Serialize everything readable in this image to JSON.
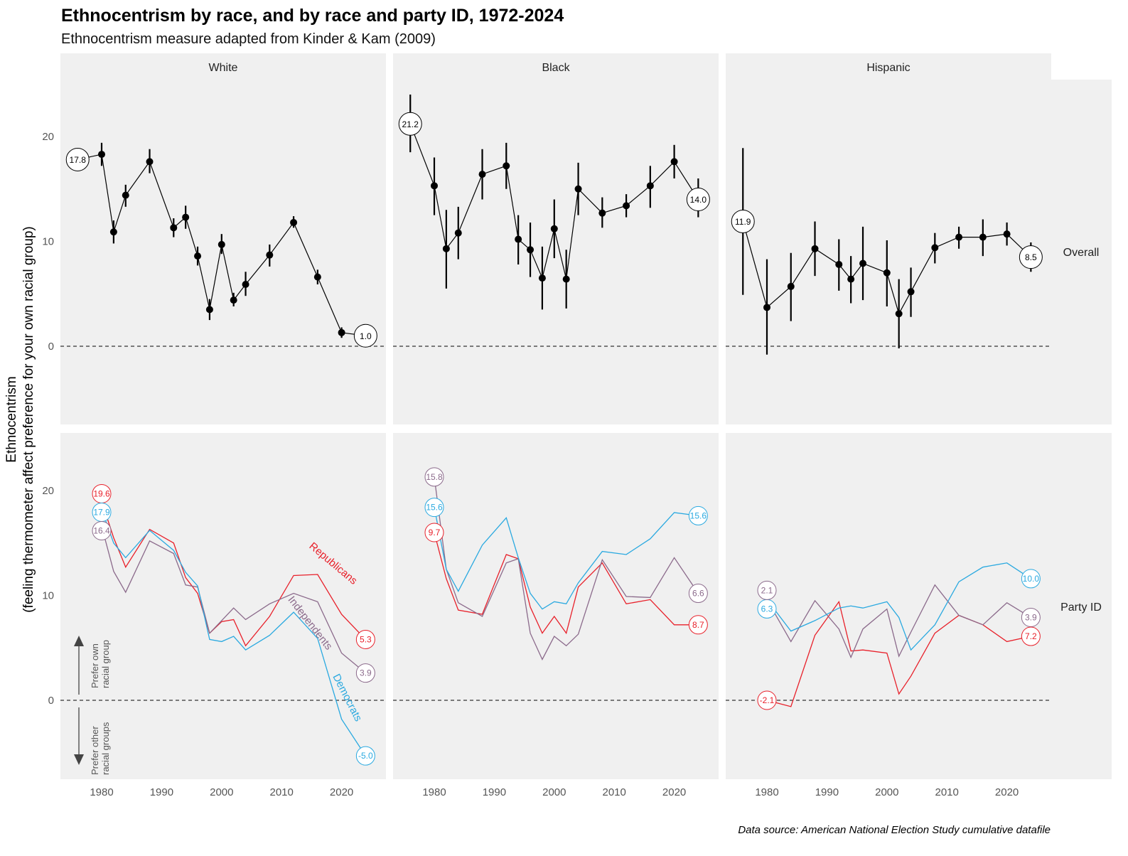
{
  "chart_data": {
    "type": "line",
    "title": "Ethnocentrism by race, and by race and party ID, 1972-2024",
    "subtitle": "Ethnocentrism measure adapted from Kinder & Kam (2009)",
    "ylabel": [
      "Ethnocentrism",
      "(feeling thermometer affect preference for your own racial group)"
    ],
    "caption": "Data source: American National Election Study cumulative datafile",
    "columns": [
      "White",
      "Black",
      "Hispanic"
    ],
    "rows": [
      "Overall",
      "Party ID"
    ],
    "x_ticks": [
      1980,
      1990,
      2000,
      2010,
      2020
    ],
    "y_ticks": [
      0,
      10,
      20
    ],
    "ylim_overall": [
      -7.5,
      25.5
    ],
    "ylim_party": [
      -7.5,
      25.5
    ],
    "xlim": [
      1974,
      2027
    ],
    "reference_line": 0,
    "colors": {
      "Republicans": "#e8202a",
      "Democrats": "#2aa9e0",
      "Independents": "#8b6a8b",
      "Overall": "#000000",
      "panel_bg": "#f0f0f0"
    },
    "annotations": {
      "up": [
        "Prefer own",
        "racial group"
      ],
      "down": [
        "Prefer other",
        "racial groups"
      ]
    },
    "overall": [
      {
        "facet": "White",
        "years": [
          1976,
          1980,
          1982,
          1984,
          1988,
          1992,
          1994,
          1996,
          1998,
          2000,
          2002,
          2004,
          2008,
          2012,
          2016,
          2020,
          2024
        ],
        "values": [
          17.8,
          18.3,
          10.9,
          14.4,
          17.6,
          11.3,
          12.3,
          8.6,
          3.5,
          9.7,
          4.4,
          5.9,
          8.7,
          11.8,
          6.6,
          1.3,
          1.0
        ],
        "ci_low": [
          17.8,
          17.2,
          9.8,
          13.3,
          16.5,
          10.4,
          11.2,
          7.7,
          2.5,
          8.8,
          3.8,
          4.8,
          7.6,
          11.3,
          5.9,
          0.8,
          0.4
        ],
        "ci_high": [
          17.8,
          19.4,
          12.0,
          15.4,
          18.8,
          12.2,
          13.4,
          9.5,
          4.5,
          10.7,
          5.1,
          7.1,
          9.7,
          12.4,
          7.3,
          1.8,
          1.6
        ],
        "labels": [
          {
            "text": "17.8",
            "year": 1976,
            "y": 17.8
          },
          {
            "text": "1.0",
            "year": 2024,
            "y": 1.0
          }
        ]
      },
      {
        "facet": "Black",
        "years": [
          1976,
          1980,
          1982,
          1984,
          1988,
          1992,
          1994,
          1996,
          1998,
          2000,
          2002,
          2004,
          2008,
          2012,
          2016,
          2020,
          2024
        ],
        "values": [
          21.2,
          15.3,
          9.3,
          10.8,
          16.4,
          17.2,
          10.2,
          9.2,
          6.5,
          11.2,
          6.4,
          15.0,
          12.7,
          13.4,
          15.3,
          17.6,
          14.0
        ],
        "ci_low": [
          18.5,
          12.5,
          5.5,
          8.3,
          14.0,
          15.0,
          7.8,
          6.6,
          3.5,
          8.4,
          3.6,
          12.5,
          11.3,
          12.3,
          13.2,
          16.0,
          12.3
        ],
        "ci_high": [
          24.0,
          18.0,
          13.0,
          13.3,
          18.8,
          19.4,
          12.5,
          11.8,
          9.5,
          14.0,
          9.2,
          17.5,
          14.2,
          14.5,
          17.2,
          19.2,
          16.0
        ],
        "labels": [
          {
            "text": "21.2",
            "year": 1976,
            "y": 21.2
          },
          {
            "text": "14.0",
            "year": 2024,
            "y": 14.0
          }
        ]
      },
      {
        "facet": "Hispanic",
        "years": [
          1976,
          1980,
          1984,
          1988,
          1992,
          1994,
          1996,
          2000,
          2002,
          2004,
          2008,
          2012,
          2016,
          2020,
          2024
        ],
        "values": [
          11.9,
          3.7,
          5.7,
          9.3,
          7.8,
          6.4,
          7.9,
          7.0,
          3.1,
          5.2,
          9.4,
          10.4,
          10.4,
          10.7,
          8.5
        ],
        "ci_low": [
          4.9,
          -0.8,
          2.4,
          6.7,
          5.3,
          4.1,
          4.4,
          3.8,
          -0.2,
          2.8,
          7.9,
          9.3,
          8.6,
          9.6,
          7.1
        ],
        "ci_high": [
          18.9,
          8.3,
          8.9,
          11.9,
          10.2,
          8.6,
          11.4,
          10.1,
          6.4,
          7.5,
          10.8,
          11.4,
          12.1,
          11.8,
          9.9
        ],
        "labels": [
          {
            "text": "11.9",
            "year": 1976,
            "y": 11.9
          },
          {
            "text": "8.5",
            "year": 2024,
            "y": 8.5
          }
        ]
      }
    ],
    "party": [
      {
        "facet": "White",
        "years": [
          1980,
          1982,
          1984,
          1988,
          1992,
          1994,
          1996,
          1998,
          2000,
          2002,
          2004,
          2008,
          2012,
          2016,
          2020,
          2024
        ],
        "series": [
          {
            "name": "Republicans",
            "values": [
              19.0,
              15.5,
              12.7,
              16.3,
              15.0,
              11.7,
              10.2,
              6.4,
              7.5,
              7.7,
              5.2,
              8.0,
              11.9,
              12.0,
              8.2,
              5.8
            ]
          },
          {
            "name": "Independents",
            "values": [
              16.6,
              12.3,
              10.3,
              15.2,
              14.0,
              11.0,
              10.8,
              6.4,
              7.6,
              8.8,
              7.7,
              9.2,
              10.2,
              9.4,
              4.5,
              2.6
            ]
          },
          {
            "name": "Democrats",
            "values": [
              18.2,
              15.0,
              13.6,
              16.2,
              14.3,
              12.2,
              10.9,
              5.8,
              5.6,
              6.1,
              4.8,
              6.2,
              8.4,
              5.9,
              -1.8,
              -5.3
            ]
          }
        ],
        "labels": [
          {
            "series": "Republicans",
            "text": "19.6",
            "year": 1980,
            "y": 19.0
          },
          {
            "series": "Democrats",
            "text": "17.9",
            "year": 1980,
            "y": 18.2
          },
          {
            "series": "Independents",
            "text": "16.4",
            "year": 1980,
            "y": 16.6
          },
          {
            "series": "Republicans",
            "text": "5.3",
            "year": 2024,
            "y": 5.8
          },
          {
            "series": "Independents",
            "text": "3.9",
            "year": 2024,
            "y": 2.6
          },
          {
            "series": "Democrats",
            "text": "-5.0",
            "year": 2024,
            "y": -5.3
          }
        ],
        "series_labels": [
          {
            "text": "Republicans",
            "series": "Republicans"
          },
          {
            "text": "Independents",
            "series": "Independents"
          },
          {
            "text": "Democrats",
            "series": "Democrats"
          }
        ]
      },
      {
        "facet": "Black",
        "years": [
          1980,
          1982,
          1984,
          1988,
          1992,
          1994,
          1996,
          1998,
          2000,
          2002,
          2004,
          2008,
          2012,
          2016,
          2020,
          2024
        ],
        "series": [
          {
            "name": "Republicans",
            "values": [
              16.0,
              11.6,
              8.6,
              8.2,
              13.9,
              13.5,
              8.9,
              6.4,
              8.0,
              6.4,
              10.8,
              13.1,
              9.2,
              9.6,
              7.2,
              7.2
            ]
          },
          {
            "name": "Independents",
            "values": [
              21.3,
              12.5,
              9.3,
              8.0,
              13.1,
              13.5,
              6.4,
              3.9,
              6.1,
              5.2,
              6.3,
              13.4,
              9.9,
              9.8,
              13.6,
              10.2
            ]
          },
          {
            "name": "Democrats",
            "values": [
              18.4,
              12.5,
              10.4,
              14.8,
              17.4,
              13.6,
              10.2,
              8.7,
              9.4,
              9.2,
              11.2,
              14.2,
              13.9,
              15.4,
              17.9,
              17.6
            ]
          }
        ],
        "labels": [
          {
            "series": "Independents",
            "text": "15.8",
            "year": 1980,
            "y": 21.3
          },
          {
            "series": "Democrats",
            "text": "15.6",
            "year": 1980,
            "y": 18.4
          },
          {
            "series": "Republicans",
            "text": "9.7",
            "year": 1980,
            "y": 16.0
          },
          {
            "series": "Democrats",
            "text": "15.6",
            "year": 2024,
            "y": 17.6
          },
          {
            "series": "Independents",
            "text": "6.6",
            "year": 2024,
            "y": 10.2
          },
          {
            "series": "Republicans",
            "text": "8.7",
            "year": 2024,
            "y": 7.2
          }
        ]
      },
      {
        "facet": "Hispanic",
        "years": [
          1980,
          1984,
          1988,
          1992,
          1994,
          1996,
          2000,
          2002,
          2004,
          2008,
          2012,
          2016,
          2020,
          2024
        ],
        "series": [
          {
            "name": "Republicans",
            "values": [
              0.0,
              -0.6,
              6.2,
              9.4,
              4.7,
              4.8,
              4.5,
              0.6,
              2.3,
              6.4,
              8.1,
              7.2,
              5.6,
              6.1
            ]
          },
          {
            "name": "Independents",
            "values": [
              9.6,
              5.6,
              9.5,
              6.8,
              4.1,
              6.8,
              8.7,
              4.2,
              6.5,
              11.0,
              8.1,
              7.2,
              9.3,
              7.9
            ]
          },
          {
            "name": "Democrats",
            "values": [
              9.6,
              6.6,
              7.6,
              8.8,
              9.0,
              8.8,
              9.4,
              7.9,
              4.8,
              7.2,
              11.3,
              12.7,
              13.1,
              11.6
            ]
          }
        ],
        "labels": [
          {
            "series": "Democrats",
            "text": "6.3",
            "year": 1980,
            "y": 9.5
          },
          {
            "series": "Independents",
            "text": "2.1",
            "year": 1980,
            "y": 9.7
          },
          {
            "series": "Republicans",
            "text": "-2.1",
            "year": 1980,
            "y": 0.0
          },
          {
            "series": "Democrats",
            "text": "10.0",
            "year": 2024,
            "y": 11.6
          },
          {
            "series": "Independents",
            "text": "3.9",
            "year": 2024,
            "y": 7.9
          },
          {
            "series": "Republicans",
            "text": "7.2",
            "year": 2024,
            "y": 6.1
          }
        ]
      }
    ]
  }
}
